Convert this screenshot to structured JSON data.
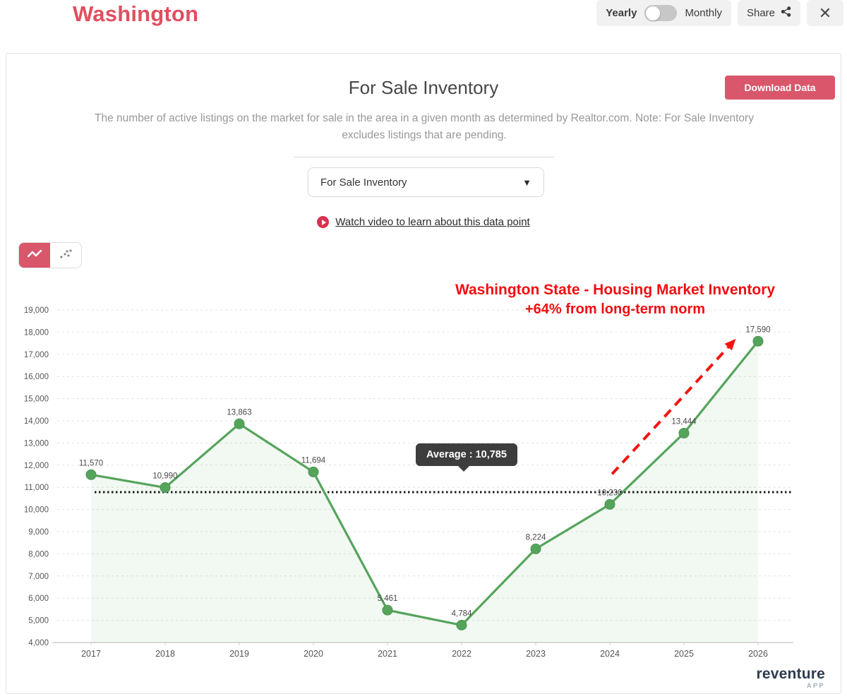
{
  "header": {
    "title": "Washington",
    "period_toggle": {
      "left_label": "Yearly",
      "right_label": "Monthly",
      "selected": "Yearly"
    },
    "share_label": "Share",
    "close_glyph": "✕"
  },
  "panel": {
    "title": "For Sale Inventory",
    "download_button_label": "Download Data",
    "description": "The number of active listings on the market for sale in the area in a given month as determined by Realtor.com. Note: For Sale Inventory excludes listings that are pending.",
    "metric_dropdown": {
      "selected_value": "For Sale Inventory",
      "caret_glyph": "▼"
    },
    "video_link_label": "Watch video to learn about this data point",
    "chart_type_toggle": {
      "active": "line",
      "options": [
        "line",
        "scatter"
      ]
    }
  },
  "annotation": {
    "title": "Washington State - Housing Market Inventory",
    "subtitle": "+64% from long-term norm",
    "color": "#f20d11"
  },
  "average_tooltip_label": "Average : 10,785",
  "chart_data": {
    "type": "line",
    "title": "For Sale Inventory - Washington",
    "categories": [
      "2017",
      "2018",
      "2019",
      "2020",
      "2021",
      "2022",
      "2023",
      "2024",
      "2025",
      "2026"
    ],
    "values": [
      11570,
      10990,
      13863,
      11694,
      5461,
      4784,
      8224,
      10230,
      13444,
      17590
    ],
    "point_labels": [
      "11,570",
      "10,990",
      "13,863",
      "11,694",
      "5,461",
      "4,784",
      "8,224",
      "10,230",
      "13,444",
      "17,590"
    ],
    "average_value": 10785,
    "ylim": [
      4000,
      19000
    ],
    "ytick_step": 1000,
    "grid": true,
    "line_color": "#55a45c",
    "point_color": "#55a45c",
    "area_fill_color": "#55a45c",
    "area_fill_opacity": 0.08,
    "average_line_color": "#1b1b1b",
    "annotation_arrow": {
      "from": {
        "x_index": 7.03,
        "value": 11600
      },
      "to": {
        "x_index": 8.7,
        "value": 17700
      },
      "color": "#f2150f"
    }
  },
  "branding": {
    "name": "reventure",
    "sub": "APP"
  }
}
